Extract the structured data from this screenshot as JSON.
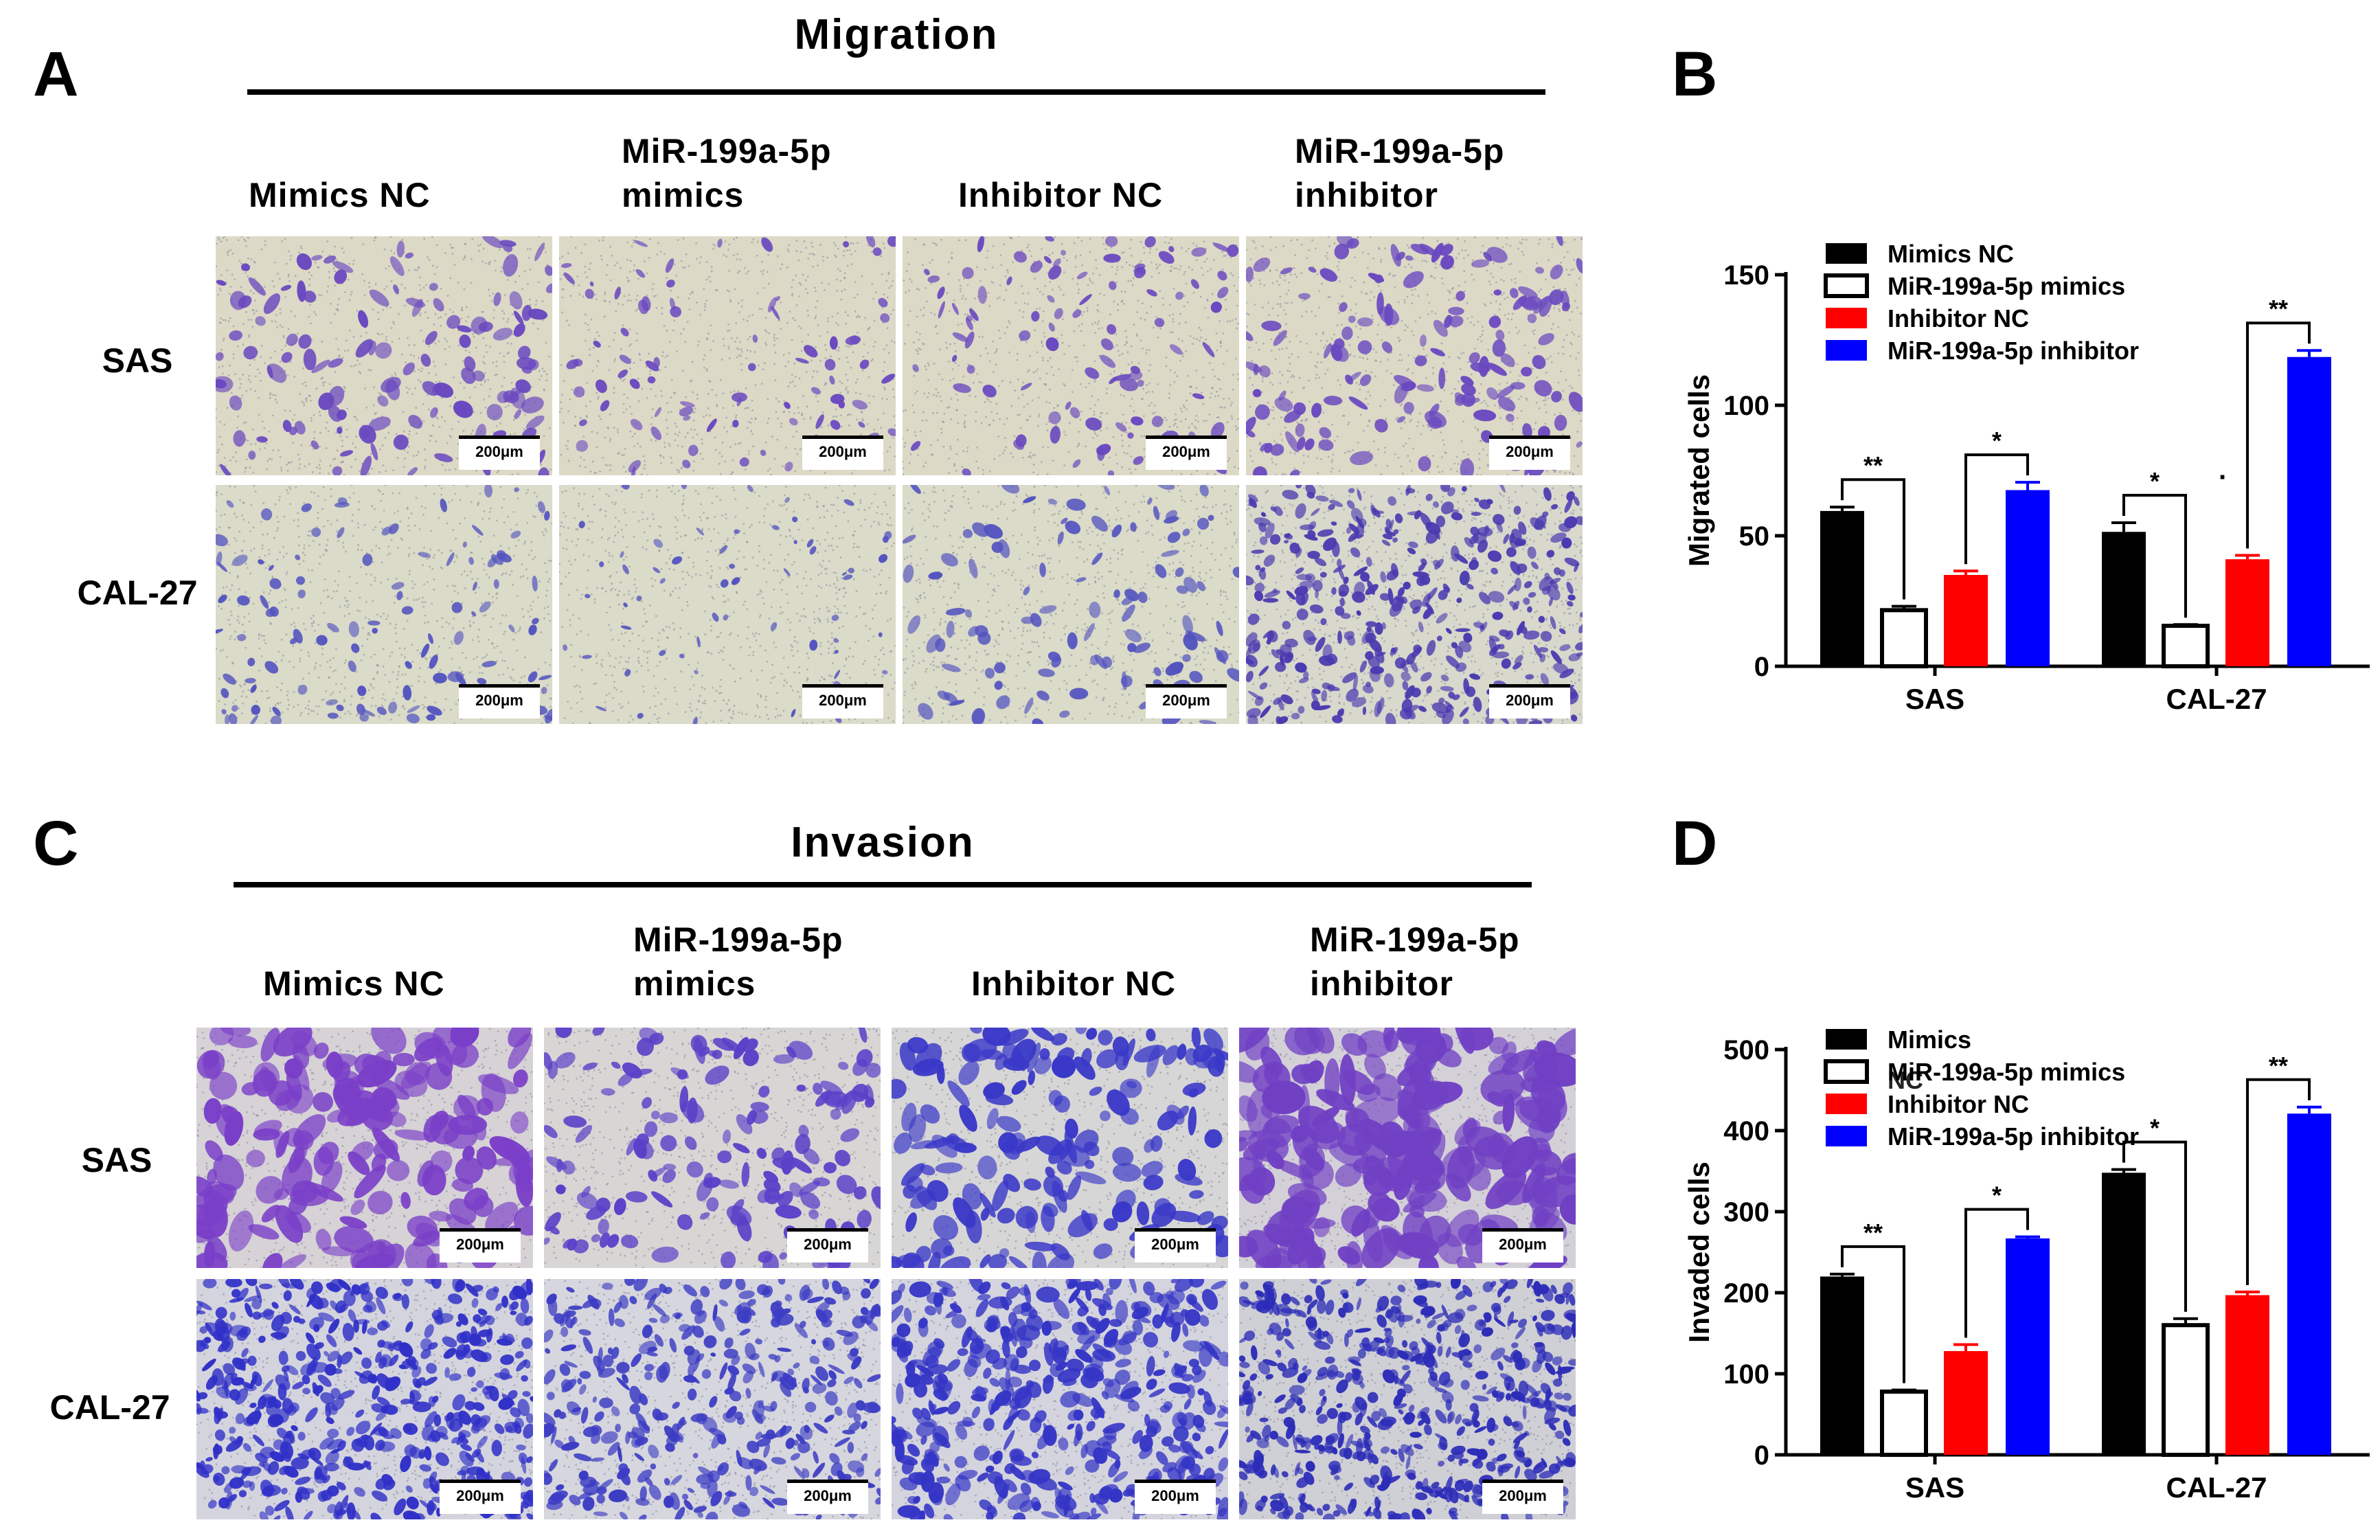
{
  "migration": {
    "letter": "A",
    "title": "Migration",
    "columns": [
      "Mimics NC",
      "MiR-199a-5p\nmimics",
      "Inhibitor NC",
      "MiR-199a-5p\n inhibitor"
    ],
    "rows": [
      "SAS",
      "CAL-27"
    ],
    "scale_bar": "200μm"
  },
  "invasion": {
    "letter": "C",
    "title": "Invasion",
    "columns": [
      "Mimics NC",
      "MiR-199a-5p\nmimics",
      "Inhibitor NC",
      "MiR-199a-5p\ninhibitor"
    ],
    "rows": [
      "SAS",
      "CAL-27"
    ],
    "scale_bar": "200μm"
  },
  "colors": {
    "mimics_nc": "#000000",
    "mir_mimics": "#ffffff",
    "inhibitor_nc": "#ff0000",
    "mir_inhibitor": "#0000ff",
    "micro_background": "#dcd9c9",
    "cell_stain": "#5a3fb2"
  },
  "chart_data": [
    {
      "panel": "B",
      "type": "bar",
      "title": "",
      "xlabel": "",
      "ylabel": "Migrated cells",
      "ylim": [
        0,
        150
      ],
      "yticks": [
        "0",
        "50",
        "100",
        "150"
      ],
      "categories": [
        "SAS",
        "CAL-27"
      ],
      "legend_position": "top-left",
      "legend": [
        "Mimics NC",
        "MiR-199a-5p mimics",
        "Inhibitor NC",
        "MiR-199a-5p inhibitor"
      ],
      "series": [
        {
          "name": "Mimics NC",
          "values": [
            59.5,
            51.5
          ],
          "errors": [
            1.5,
            3.5
          ]
        },
        {
          "name": "MiR-199a-5p mimics",
          "values": [
            21.5,
            15.5
          ],
          "errors": [
            1.5,
            0.5
          ]
        },
        {
          "name": "Inhibitor NC",
          "values": [
            35,
            41
          ],
          "errors": [
            1.5,
            1.5
          ]
        },
        {
          "name": "MiR-199a-5p inhibitor",
          "values": [
            67.5,
            118.5
          ],
          "errors": [
            3,
            2.5
          ]
        }
      ],
      "significance": [
        {
          "category": 0,
          "from": 0,
          "to": 1,
          "label": "**"
        },
        {
          "category": 0,
          "from": 2,
          "to": 3,
          "label": "*"
        },
        {
          "category": 1,
          "from": 0,
          "to": 1,
          "label": "*"
        },
        {
          "category": 1,
          "from": 2,
          "to": 3,
          "label": "**"
        }
      ],
      "stray_mark": "·"
    },
    {
      "panel": "D",
      "type": "bar",
      "title": "",
      "xlabel": "",
      "ylabel": "Invaded cells",
      "ylim": [
        0,
        500
      ],
      "yticks": [
        "0",
        "100",
        "200",
        "300",
        "400",
        "500"
      ],
      "categories": [
        "SAS",
        "CAL-27"
      ],
      "legend_position": "top-left",
      "legend": [
        "Mimics",
        "MiR-199a-5p mimics",
        "Inhibitor NC",
        "MiR-199a-5p inhibitor"
      ],
      "legend_overlap": "NC",
      "series": [
        {
          "name": "Mimics NC",
          "values": [
            220,
            348
          ],
          "errors": [
            3,
            4
          ]
        },
        {
          "name": "MiR-199a-5p mimics",
          "values": [
            78,
            160
          ],
          "errors": [
            2,
            8
          ]
        },
        {
          "name": "Inhibitor NC",
          "values": [
            128,
            197
          ],
          "errors": [
            8,
            4
          ]
        },
        {
          "name": "MiR-199a-5p inhibitor",
          "values": [
            267,
            421
          ],
          "errors": [
            2,
            8
          ]
        }
      ],
      "significance": [
        {
          "category": 0,
          "from": 0,
          "to": 1,
          "label": "**"
        },
        {
          "category": 0,
          "from": 2,
          "to": 3,
          "label": "*"
        },
        {
          "category": 1,
          "from": 0,
          "to": 1,
          "label": "*"
        },
        {
          "category": 1,
          "from": 2,
          "to": 3,
          "label": "**"
        }
      ]
    }
  ]
}
